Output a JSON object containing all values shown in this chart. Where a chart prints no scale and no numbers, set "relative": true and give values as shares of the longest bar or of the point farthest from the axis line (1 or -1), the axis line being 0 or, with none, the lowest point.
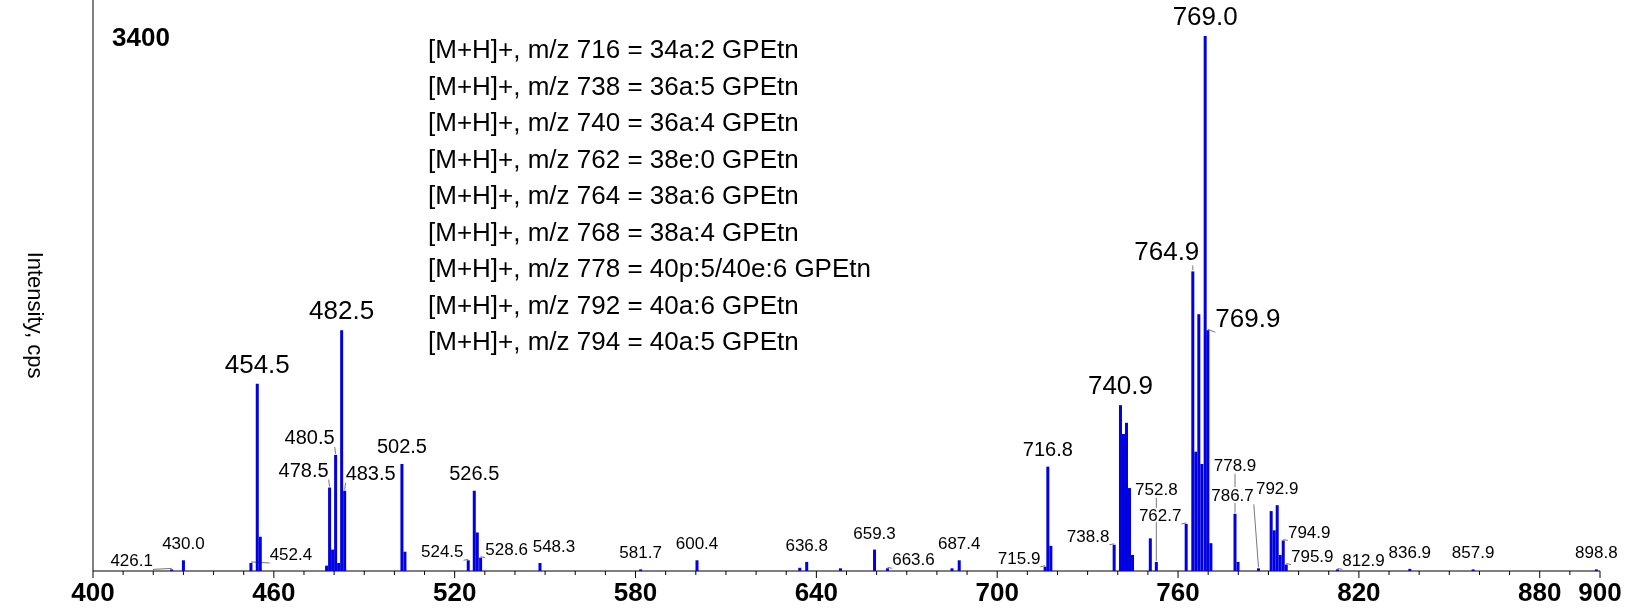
{
  "chart_data": {
    "type": "bar",
    "relative": true,
    "ylabel": "Intensity, cps",
    "color": "#0000e0",
    "xlim": [
      400,
      900
    ],
    "xticks": [
      400,
      {
        "value": 410,
        "label": null
      },
      {
        "value": 420,
        "label": null
      },
      {
        "value": 430,
        "label": null
      },
      {
        "value": 440,
        "label": null
      },
      {
        "value": 450,
        "label": null
      },
      460,
      {
        "value": 470,
        "label": null
      },
      {
        "value": 480,
        "label": null
      },
      {
        "value": 490,
        "label": null
      },
      {
        "value": 500,
        "label": null
      },
      {
        "value": 510,
        "label": null
      },
      520,
      {
        "value": 530,
        "label": null
      },
      {
        "value": 540,
        "label": null
      },
      {
        "value": 550,
        "label": null
      },
      {
        "value": 560,
        "label": null
      },
      {
        "value": 570,
        "label": null
      },
      580,
      {
        "value": 590,
        "label": null
      },
      {
        "value": 600,
        "label": null
      },
      {
        "value": 610,
        "label": null
      },
      {
        "value": 620,
        "label": null
      },
      {
        "value": 630,
        "label": null
      },
      640,
      {
        "value": 650,
        "label": null
      },
      {
        "value": 660,
        "label": null
      },
      {
        "value": 670,
        "label": null
      },
      {
        "value": 680,
        "label": null
      },
      {
        "value": 690,
        "label": null
      },
      700,
      {
        "value": 710,
        "label": null
      },
      {
        "value": 720,
        "label": null
      },
      {
        "value": 730,
        "label": null
      },
      {
        "value": 740,
        "label": null
      },
      {
        "value": 750,
        "label": null
      },
      760,
      {
        "value": 770,
        "label": null
      },
      {
        "value": 780,
        "label": null
      },
      {
        "value": 790,
        "label": null
      },
      {
        "value": 800,
        "label": null
      },
      {
        "value": 810,
        "label": null
      },
      820,
      {
        "value": 830,
        "label": null
      },
      {
        "value": 840,
        "label": null
      },
      {
        "value": 850,
        "label": null
      },
      {
        "value": 860,
        "label": null
      },
      {
        "value": 870,
        "label": null
      },
      880,
      {
        "value": 890,
        "label": null
      },
      900
    ],
    "x": [
      426.1,
      430.0,
      452.4,
      454.5,
      455.5,
      477.5,
      478.5,
      479.5,
      480.5,
      481.5,
      482.5,
      483.5,
      502.5,
      503.5,
      524.5,
      526.5,
      527.5,
      528.6,
      548.3,
      581.7,
      600.4,
      634.5,
      636.8,
      648.0,
      659.3,
      663.6,
      685.0,
      687.4,
      715.9,
      716.8,
      717.8,
      738.8,
      740.9,
      741.9,
      742.9,
      743.9,
      744.9,
      750.8,
      752.8,
      762.7,
      764.9,
      765.9,
      766.9,
      767.9,
      769.0,
      769.9,
      770.9,
      778.9,
      779.9,
      786.7,
      790.9,
      791.9,
      792.9,
      793.9,
      794.9,
      795.9,
      812.9,
      836.9,
      857.9,
      898.8
    ],
    "values": [
      0.003,
      0.02,
      0.015,
      0.35,
      0.064,
      0.01,
      0.156,
      0.04,
      0.217,
      0.015,
      0.45,
      0.15,
      0.2,
      0.036,
      0.02,
      0.15,
      0.072,
      0.025,
      0.015,
      0.003,
      0.02,
      0.006,
      0.017,
      0.005,
      0.04,
      0.005,
      0.005,
      0.02,
      0.008,
      0.195,
      0.047,
      0.049,
      0.31,
      0.256,
      0.277,
      0.155,
      0.03,
      0.061,
      0.017,
      0.088,
      0.56,
      0.223,
      0.48,
      0.2,
      1,
      0.45,
      0.052,
      0.107,
      0.017,
      0.005,
      0.112,
      0.076,
      0.123,
      0.03,
      0.057,
      0.012,
      0.003,
      0.004,
      0.003,
      0.003
    ],
    "annotations": [
      "3400",
      "[M+H]+, m/z 716 = 34a:2 GPEtn",
      "[M+H]+, m/z 738 = 36a:5 GPEtn",
      "[M+H]+, m/z 740 = 36a:4 GPEtn",
      "[M+H]+, m/z 762 = 38e:0 GPEtn",
      "[M+H]+, m/z 764 = 38a:6 GPEtn",
      "[M+H]+, m/z 768 = 38a:4 GPEtn",
      "[M+H]+, m/z 778 = 40p:5/40e:6 GPEtn",
      "[M+H]+, m/z 792 = 40a:6 GPEtn",
      "[M+H]+, m/z 794 = 40a:5 GPEtn",
      {
        "text": "769.0",
        "x": 769.0,
        "y": 1
      },
      {
        "text": "764.9",
        "x": 764.9,
        "y": 0.56
      },
      {
        "text": "482.5",
        "x": 482.5,
        "y": 0.45
      },
      {
        "text": "769.9",
        "x": 769.9,
        "y": 0.45
      },
      {
        "text": "454.5",
        "x": 454.5,
        "y": 0.35
      },
      {
        "text": "740.9",
        "x": 740.9,
        "y": 0.31
      },
      {
        "text": "480.5",
        "x": 480.5,
        "y": 0.217
      },
      {
        "text": "502.5",
        "x": 502.5,
        "y": 0.2
      },
      {
        "text": "716.8",
        "x": 716.8,
        "y": 0.195
      },
      {
        "text": "478.5",
        "x": 478.5,
        "y": 0.156
      },
      {
        "text": "483.5",
        "x": 483.5,
        "y": 0.15
      },
      {
        "text": "526.5",
        "x": 526.5,
        "y": 0.15
      },
      {
        "text": "792.9",
        "x": 792.9,
        "y": 0.123
      },
      {
        "text": "778.9",
        "x": 778.9,
        "y": 0.107
      },
      {
        "text": "762.7",
        "x": 762.7,
        "y": 0.088
      },
      {
        "text": "794.9",
        "x": 794.9,
        "y": 0.057
      },
      {
        "text": "738.8",
        "x": 738.8,
        "y": 0.049
      },
      {
        "text": "659.3",
        "x": 659.3,
        "y": 0.04
      },
      {
        "text": "528.6",
        "x": 528.6,
        "y": 0.025
      },
      {
        "text": "430.0",
        "x": 430.0,
        "y": 0.02
      },
      {
        "text": "524.5",
        "x": 524.5,
        "y": 0.02
      },
      {
        "text": "600.4",
        "x": 600.4,
        "y": 0.02
      },
      {
        "text": "687.4",
        "x": 687.4,
        "y": 0.02
      },
      {
        "text": "548.3",
        "x": 548.3,
        "y": 0.015
      },
      {
        "text": "452.4",
        "x": 452.4,
        "y": 0.015
      },
      {
        "text": "636.8",
        "x": 636.8,
        "y": 0.017
      },
      {
        "text": "752.8",
        "x": 752.8,
        "y": 0.017
      },
      {
        "text": "795.9",
        "x": 795.9,
        "y": 0.012
      },
      {
        "text": "715.9",
        "x": 715.9,
        "y": 0.008
      },
      {
        "text": "663.6",
        "x": 663.6,
        "y": 0.005
      },
      {
        "text": "786.7",
        "x": 786.7,
        "y": 0.005
      },
      {
        "text": "426.1",
        "x": 426.1,
        "y": 0.003
      },
      {
        "text": "581.7",
        "x": 581.7,
        "y": 0.003
      },
      {
        "text": "812.9",
        "x": 812.9,
        "y": 0.003
      },
      {
        "text": "836.9",
        "x": 836.9,
        "y": 0.004
      },
      {
        "text": "857.9",
        "x": 857.9,
        "y": 0.003
      },
      {
        "text": "898.8",
        "x": 898.8,
        "y": 0.003
      }
    ]
  }
}
